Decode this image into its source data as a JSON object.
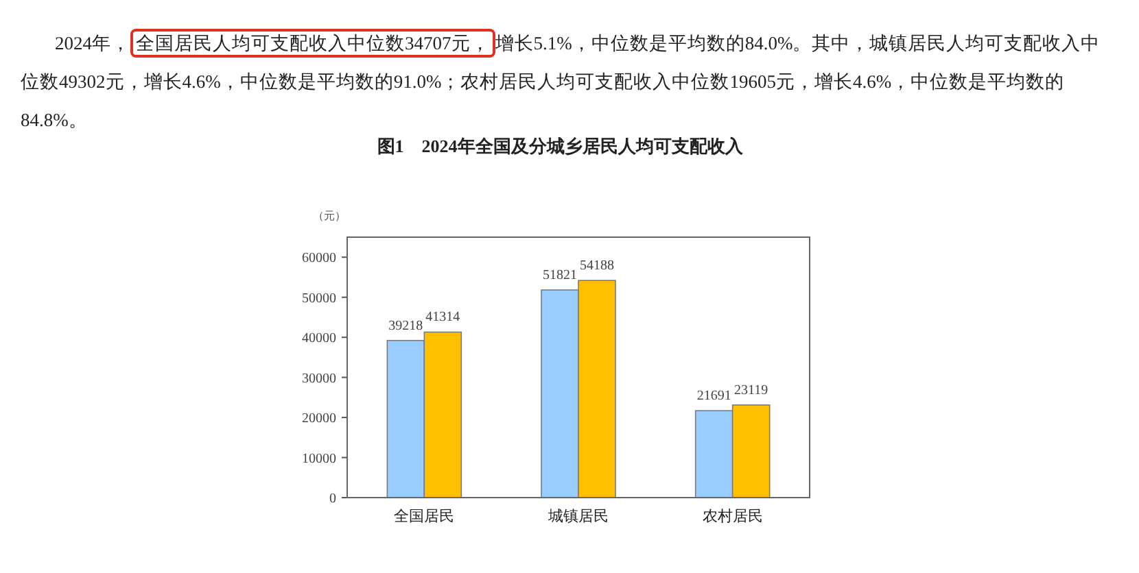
{
  "chart_data": {
    "type": "bar",
    "title": "图1　2024年全国及分城乡居民人均可支配收入",
    "ylabel": "（元）",
    "annotations": [
      "2024年，",
      "全国居民人均可支配收入中位数34707元，",
      "增长5.1%，中位数是平均数的84.0%。其中，城镇居民人均可支配收入中位数49302元，增长4.6%，中位数是平均数的91.0%；农村居民人均可支配收入中位数19605元，增长4.6%，中位数是平均数的84.8%。"
    ],
    "categories": [
      "全国居民",
      "城镇居民",
      "农村居民"
    ],
    "series": [
      {
        "color": "#99ccff",
        "values": [
          39218,
          51821,
          21691
        ]
      },
      {
        "color": "#ffc000",
        "values": [
          41314,
          54188,
          23119
        ]
      }
    ],
    "ylim": [
      0,
      65000
    ],
    "yticks": [
      0,
      10000,
      20000,
      30000,
      40000,
      50000,
      60000
    ],
    "data_labels": true
  }
}
